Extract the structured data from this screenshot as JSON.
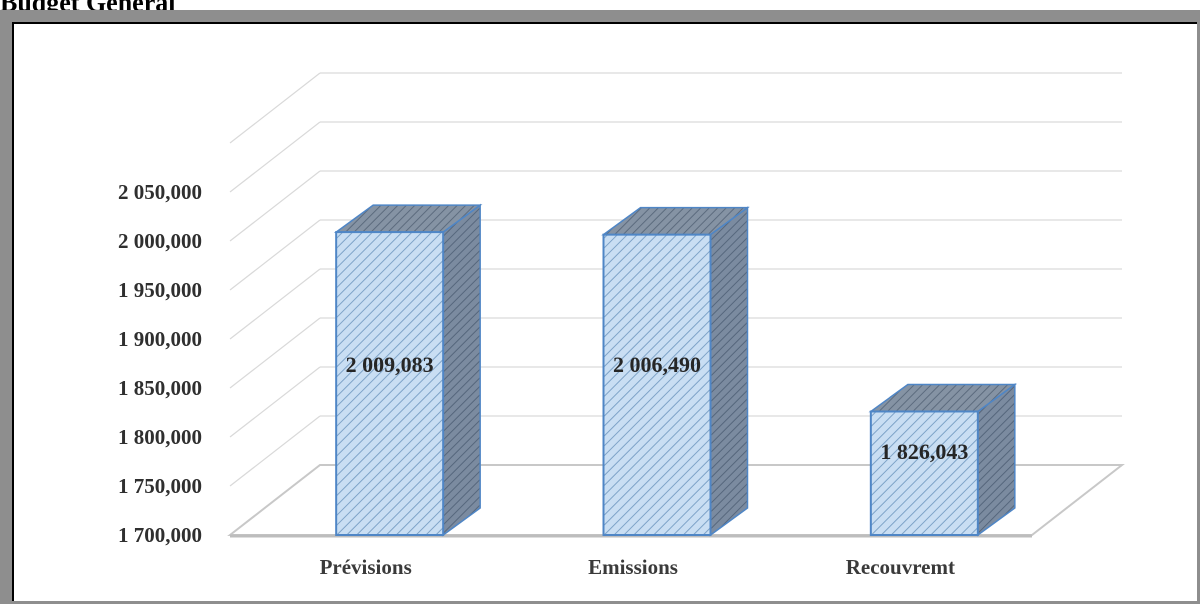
{
  "heading": "Budget Général",
  "chart_data": {
    "type": "bar",
    "title": "",
    "xlabel": "",
    "ylabel": "",
    "categories": [
      "Prévisions",
      "Emissions",
      "Recouvremt"
    ],
    "values": [
      2009083,
      2006490,
      1826043
    ],
    "data_labels": [
      "2 009,083",
      "2 006,490",
      "1 826,043"
    ],
    "yticks": [
      1700000,
      1750000,
      1800000,
      1850000,
      1900000,
      1950000,
      2000000,
      2050000
    ],
    "ytick_labels": [
      "1 700,000",
      "1 750,000",
      "1 800,000",
      "1 850,000",
      "1 900,000",
      "1 950,000",
      "2 000,000",
      "2 050,000"
    ],
    "ylim": [
      1700000,
      2100000
    ],
    "grid": true,
    "legend": "none",
    "style": "3d-column",
    "colors": {
      "bar_front": "#c5dcf2",
      "bar_hatch": "#7ea3c8",
      "bar_side": "#6f7f92",
      "bar_top": "#7d8a99",
      "bar_edge": "#4f86c6",
      "grid": "#d9d9d9"
    }
  }
}
